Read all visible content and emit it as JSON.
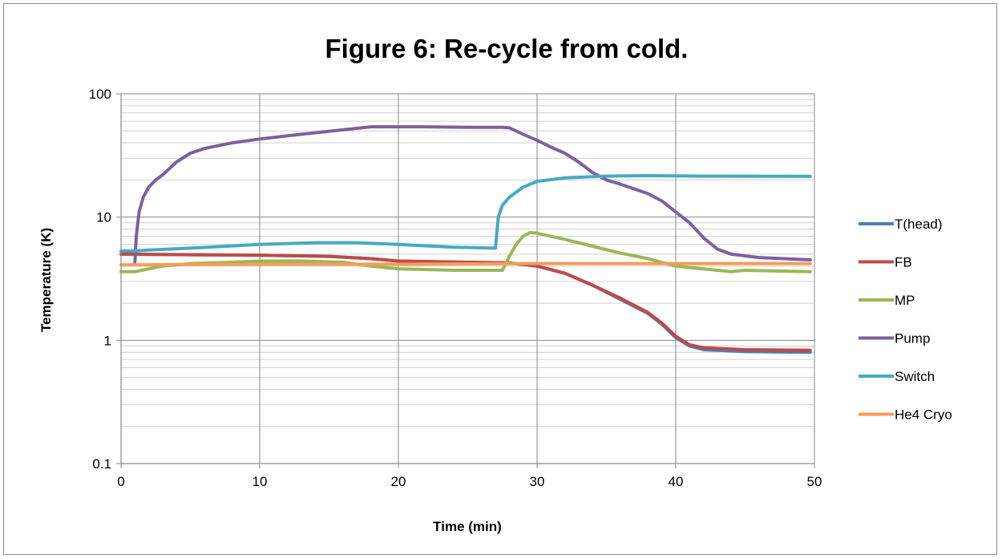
{
  "chart_data": {
    "type": "line",
    "title": "Figure 6: Re-cycle from cold.",
    "xlabel": "Time (min)",
    "ylabel": "Temperature (K)",
    "xlim": [
      0,
      50
    ],
    "ylim": [
      0.1,
      100
    ],
    "yscale": "log",
    "x_ticks": [
      "0",
      "10",
      "20",
      "30",
      "40",
      "50"
    ],
    "y_ticks": [
      "0.1",
      "1",
      "10",
      "100"
    ],
    "grid": true,
    "legend_position": "right",
    "series": [
      {
        "name": "T(head)",
        "color": "#4a7ebb",
        "points": [
          [
            0,
            5.0
          ],
          [
            5,
            4.95
          ],
          [
            10,
            4.9
          ],
          [
            15,
            4.8
          ],
          [
            18,
            4.6
          ],
          [
            20,
            4.4
          ],
          [
            25,
            4.3
          ],
          [
            28,
            4.25
          ],
          [
            30,
            4.0
          ],
          [
            32,
            3.5
          ],
          [
            34,
            2.8
          ],
          [
            36,
            2.15
          ],
          [
            38,
            1.65
          ],
          [
            39,
            1.35
          ],
          [
            40,
            1.05
          ],
          [
            41,
            0.9
          ],
          [
            42,
            0.84
          ],
          [
            45,
            0.81
          ],
          [
            49.7,
            0.8
          ]
        ]
      },
      {
        "name": "FB",
        "color": "#be4b48",
        "points": [
          [
            0,
            5.0
          ],
          [
            5,
            4.95
          ],
          [
            10,
            4.9
          ],
          [
            15,
            4.8
          ],
          [
            18,
            4.6
          ],
          [
            20,
            4.4
          ],
          [
            25,
            4.3
          ],
          [
            28,
            4.25
          ],
          [
            30,
            4.0
          ],
          [
            32,
            3.5
          ],
          [
            34,
            2.8
          ],
          [
            36,
            2.2
          ],
          [
            38,
            1.68
          ],
          [
            39,
            1.38
          ],
          [
            40,
            1.08
          ],
          [
            41,
            0.92
          ],
          [
            42,
            0.87
          ],
          [
            45,
            0.84
          ],
          [
            49.7,
            0.83
          ]
        ]
      },
      {
        "name": "MP",
        "color": "#98b954",
        "points": [
          [
            0,
            3.6
          ],
          [
            1,
            3.6
          ],
          [
            2,
            3.8
          ],
          [
            3,
            4.0
          ],
          [
            5,
            4.2
          ],
          [
            8,
            4.3
          ],
          [
            10,
            4.4
          ],
          [
            13,
            4.4
          ],
          [
            16,
            4.3
          ],
          [
            18,
            4.0
          ],
          [
            20,
            3.8
          ],
          [
            24,
            3.7
          ],
          [
            27.5,
            3.7
          ],
          [
            28,
            4.8
          ],
          [
            28.5,
            6.0
          ],
          [
            29,
            7.0
          ],
          [
            29.5,
            7.5
          ],
          [
            30,
            7.4
          ],
          [
            32,
            6.6
          ],
          [
            34,
            5.8
          ],
          [
            36,
            5.1
          ],
          [
            38,
            4.6
          ],
          [
            40,
            4.0
          ],
          [
            42,
            3.8
          ],
          [
            44,
            3.6
          ],
          [
            45,
            3.7
          ],
          [
            49.7,
            3.6
          ]
        ]
      },
      {
        "name": "Pump",
        "color": "#7d60a0",
        "points": [
          [
            1.0,
            4.3
          ],
          [
            1.1,
            7
          ],
          [
            1.3,
            11
          ],
          [
            1.6,
            14.5
          ],
          [
            2,
            17.5
          ],
          [
            2.5,
            20
          ],
          [
            3,
            22
          ],
          [
            4,
            28
          ],
          [
            5,
            33
          ],
          [
            6,
            36
          ],
          [
            8,
            40
          ],
          [
            10,
            43
          ],
          [
            13,
            47
          ],
          [
            16,
            51
          ],
          [
            18,
            54
          ],
          [
            22,
            54
          ],
          [
            25,
            53.5
          ],
          [
            27.5,
            53.5
          ],
          [
            28,
            53
          ],
          [
            29,
            47
          ],
          [
            30,
            42
          ],
          [
            31,
            37
          ],
          [
            32,
            33
          ],
          [
            33,
            28
          ],
          [
            34,
            23
          ],
          [
            35,
            20
          ],
          [
            36,
            18.5
          ],
          [
            38,
            15.5
          ],
          [
            39,
            13.5
          ],
          [
            40,
            11
          ],
          [
            41,
            9
          ],
          [
            42,
            6.8
          ],
          [
            43,
            5.5
          ],
          [
            44,
            5.0
          ],
          [
            46,
            4.7
          ],
          [
            49.7,
            4.5
          ]
        ]
      },
      {
        "name": "Switch",
        "color": "#46aac5",
        "points": [
          [
            0,
            5.3
          ],
          [
            1,
            5.3
          ],
          [
            2,
            5.4
          ],
          [
            5,
            5.6
          ],
          [
            10,
            6.0
          ],
          [
            14,
            6.2
          ],
          [
            17,
            6.2
          ],
          [
            20,
            6.0
          ],
          [
            24,
            5.7
          ],
          [
            27,
            5.6
          ],
          [
            27.2,
            10
          ],
          [
            27.5,
            12.5
          ],
          [
            28,
            14.5
          ],
          [
            29,
            17.5
          ],
          [
            30,
            19.5
          ],
          [
            32,
            20.8
          ],
          [
            35,
            21.5
          ],
          [
            38,
            21.7
          ],
          [
            42,
            21.5
          ],
          [
            49.7,
            21.4
          ]
        ]
      },
      {
        "name": "He4 Cryo",
        "color": "#f59d56",
        "points": [
          [
            0,
            4.1
          ],
          [
            10,
            4.15
          ],
          [
            20,
            4.15
          ],
          [
            30,
            4.2
          ],
          [
            40,
            4.2
          ],
          [
            49.7,
            4.2
          ]
        ]
      }
    ]
  }
}
